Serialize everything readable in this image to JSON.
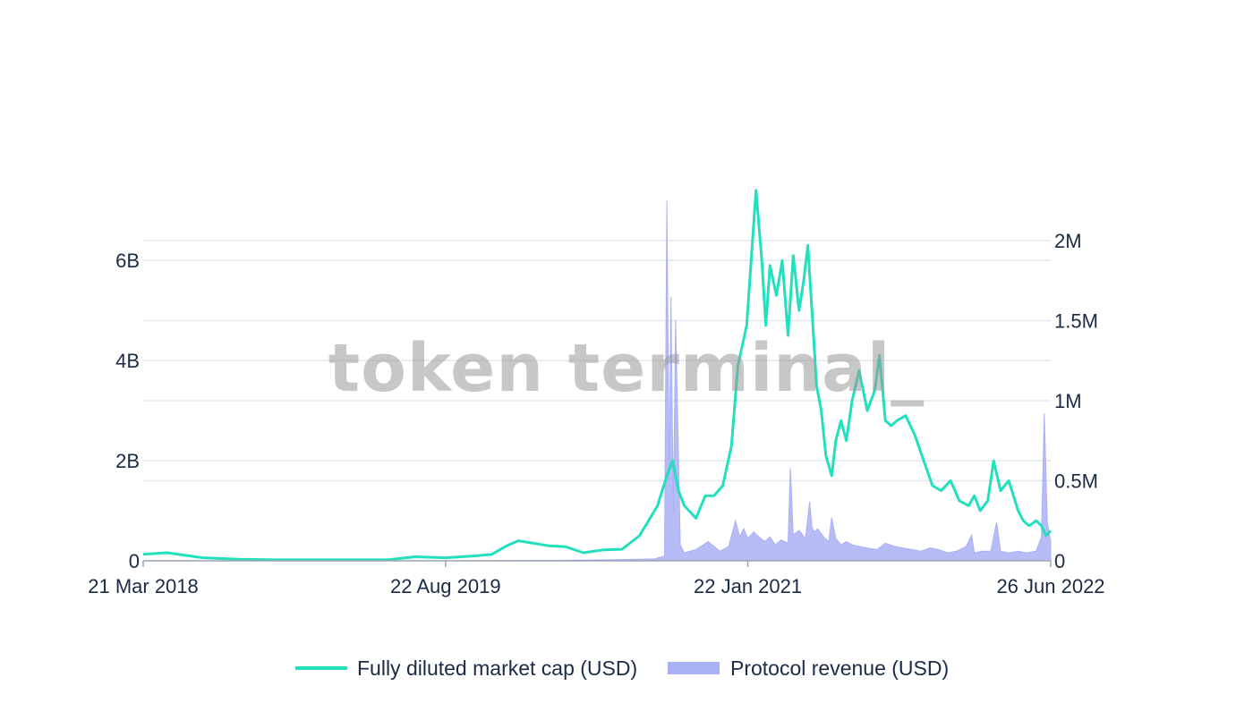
{
  "watermark": "token terminal_",
  "colors": {
    "market_cap_line": "#22e0bd",
    "revenue_fill": "#aab0f5",
    "grid": "#e3e8f0",
    "axis": "#9aa3b2",
    "text": "#1a2b45"
  },
  "chart_data": {
    "type": "line",
    "title": "",
    "x_range": [
      "2018-03-21",
      "2022-06-26"
    ],
    "x_ticks": [
      {
        "date": "2018-03-21",
        "label": "21 Mar 2018"
      },
      {
        "date": "2019-08-22",
        "label": "22 Aug 2019"
      },
      {
        "date": "2021-01-22",
        "label": "22 Jan 2021"
      },
      {
        "date": "2022-06-26",
        "label": "26 Jun 2022"
      }
    ],
    "y_left": {
      "range": [
        0,
        7450000000
      ],
      "ticks": [
        {
          "value": 0,
          "label": "0"
        },
        {
          "value": 2000000000,
          "label": "2B"
        },
        {
          "value": 4000000000,
          "label": "4B"
        },
        {
          "value": 6000000000,
          "label": "6B"
        }
      ]
    },
    "y_right": {
      "range": [
        0,
        2330000
      ],
      "ticks": [
        {
          "value": 0,
          "label": "0"
        },
        {
          "value": 500000,
          "label": "0.5M"
        },
        {
          "value": 1000000,
          "label": "1M"
        },
        {
          "value": 1500000,
          "label": "1.5M"
        },
        {
          "value": 2000000,
          "label": "2M"
        }
      ]
    },
    "grid": true,
    "legend_position": "bottom",
    "series": [
      {
        "name": "Fully diluted market cap (USD)",
        "type": "line",
        "axis": "left",
        "x": [
          "2018-03-21",
          "2018-05-01",
          "2018-07-01",
          "2018-09-01",
          "2018-11-01",
          "2019-01-01",
          "2019-03-01",
          "2019-05-15",
          "2019-07-01",
          "2019-08-22",
          "2019-10-15",
          "2019-11-10",
          "2019-12-05",
          "2019-12-25",
          "2020-01-20",
          "2020-02-15",
          "2020-03-15",
          "2020-04-15",
          "2020-05-20",
          "2020-06-20",
          "2020-07-20",
          "2020-08-20",
          "2020-09-05",
          "2020-09-15",
          "2020-09-25",
          "2020-10-05",
          "2020-10-25",
          "2020-11-10",
          "2020-11-25",
          "2020-12-10",
          "2020-12-25",
          "2021-01-05",
          "2021-01-20",
          "2021-02-05",
          "2021-02-15",
          "2021-02-22",
          "2021-03-01",
          "2021-03-12",
          "2021-03-22",
          "2021-04-01",
          "2021-04-10",
          "2021-04-20",
          "2021-04-28",
          "2021-05-05",
          "2021-05-12",
          "2021-05-20",
          "2021-05-28",
          "2021-06-05",
          "2021-06-15",
          "2021-06-22",
          "2021-07-01",
          "2021-07-10",
          "2021-07-20",
          "2021-08-01",
          "2021-08-15",
          "2021-08-28",
          "2021-09-05",
          "2021-09-15",
          "2021-09-25",
          "2021-10-05",
          "2021-10-20",
          "2021-11-05",
          "2021-11-20",
          "2021-12-05",
          "2021-12-20",
          "2022-01-05",
          "2022-01-20",
          "2022-02-05",
          "2022-02-15",
          "2022-02-25",
          "2022-03-10",
          "2022-03-20",
          "2022-04-01",
          "2022-04-15",
          "2022-05-01",
          "2022-05-10",
          "2022-05-20",
          "2022-06-01",
          "2022-06-10",
          "2022-06-18",
          "2022-06-26"
        ],
        "values": [
          130000000,
          160000000,
          60000000,
          30000000,
          20000000,
          20000000,
          20000000,
          20000000,
          80000000,
          60000000,
          100000000,
          130000000,
          300000000,
          400000000,
          350000000,
          300000000,
          280000000,
          160000000,
          220000000,
          230000000,
          500000000,
          1100000000,
          1700000000,
          2000000000,
          1400000000,
          1100000000,
          850000000,
          1300000000,
          1300000000,
          1500000000,
          2300000000,
          3900000000,
          4700000000,
          7400000000,
          6000000000,
          4700000000,
          5900000000,
          5300000000,
          6000000000,
          4500000000,
          6100000000,
          5000000000,
          5600000000,
          6300000000,
          5000000000,
          3500000000,
          3000000000,
          2100000000,
          1700000000,
          2400000000,
          2800000000,
          2400000000,
          3200000000,
          3800000000,
          3000000000,
          3400000000,
          4100000000,
          2800000000,
          2700000000,
          2800000000,
          2900000000,
          2500000000,
          2000000000,
          1500000000,
          1400000000,
          1600000000,
          1200000000,
          1100000000,
          1300000000,
          1000000000,
          1200000000,
          2000000000,
          1400000000,
          1600000000,
          1000000000,
          800000000,
          700000000,
          800000000,
          700000000,
          500000000,
          600000000
        ]
      },
      {
        "name": "Protocol revenue (USD)",
        "type": "area",
        "axis": "right",
        "x": [
          "2018-03-21",
          "2019-08-22",
          "2020-03-01",
          "2020-06-01",
          "2020-08-15",
          "2020-09-01",
          "2020-09-05",
          "2020-09-09",
          "2020-09-12",
          "2020-09-16",
          "2020-09-20",
          "2020-09-28",
          "2020-10-05",
          "2020-10-25",
          "2020-11-15",
          "2020-12-05",
          "2020-12-20",
          "2021-01-01",
          "2021-01-08",
          "2021-01-15",
          "2021-01-22",
          "2021-02-01",
          "2021-02-10",
          "2021-02-20",
          "2021-03-01",
          "2021-03-10",
          "2021-03-20",
          "2021-04-01",
          "2021-04-05",
          "2021-04-10",
          "2021-04-20",
          "2021-05-01",
          "2021-05-08",
          "2021-05-12",
          "2021-05-16",
          "2021-05-22",
          "2021-06-01",
          "2021-06-10",
          "2021-06-15",
          "2021-06-22",
          "2021-07-01",
          "2021-07-10",
          "2021-07-20",
          "2021-08-01",
          "2021-08-15",
          "2021-09-01",
          "2021-09-15",
          "2021-10-01",
          "2021-10-15",
          "2021-11-01",
          "2021-11-15",
          "2021-12-01",
          "2021-12-15",
          "2022-01-01",
          "2022-01-15",
          "2022-02-01",
          "2022-02-10",
          "2022-02-15",
          "2022-03-01",
          "2022-03-15",
          "2022-03-25",
          "2022-04-01",
          "2022-04-15",
          "2022-05-01",
          "2022-05-15",
          "2022-06-01",
          "2022-06-10",
          "2022-06-15",
          "2022-06-20",
          "2022-06-23",
          "2022-06-26"
        ],
        "values": [
          0,
          0,
          3000,
          6000,
          12000,
          30000,
          2250000,
          500000,
          1650000,
          300000,
          1500000,
          100000,
          50000,
          70000,
          120000,
          60000,
          90000,
          250000,
          150000,
          200000,
          140000,
          180000,
          150000,
          120000,
          150000,
          100000,
          130000,
          110000,
          580000,
          160000,
          190000,
          140000,
          370000,
          210000,
          180000,
          200000,
          150000,
          120000,
          270000,
          140000,
          100000,
          120000,
          100000,
          90000,
          80000,
          70000,
          110000,
          90000,
          80000,
          70000,
          60000,
          80000,
          70000,
          50000,
          60000,
          90000,
          160000,
          50000,
          60000,
          60000,
          240000,
          60000,
          50000,
          60000,
          50000,
          60000,
          150000,
          920000,
          250000,
          180000,
          120000
        ]
      }
    ]
  }
}
